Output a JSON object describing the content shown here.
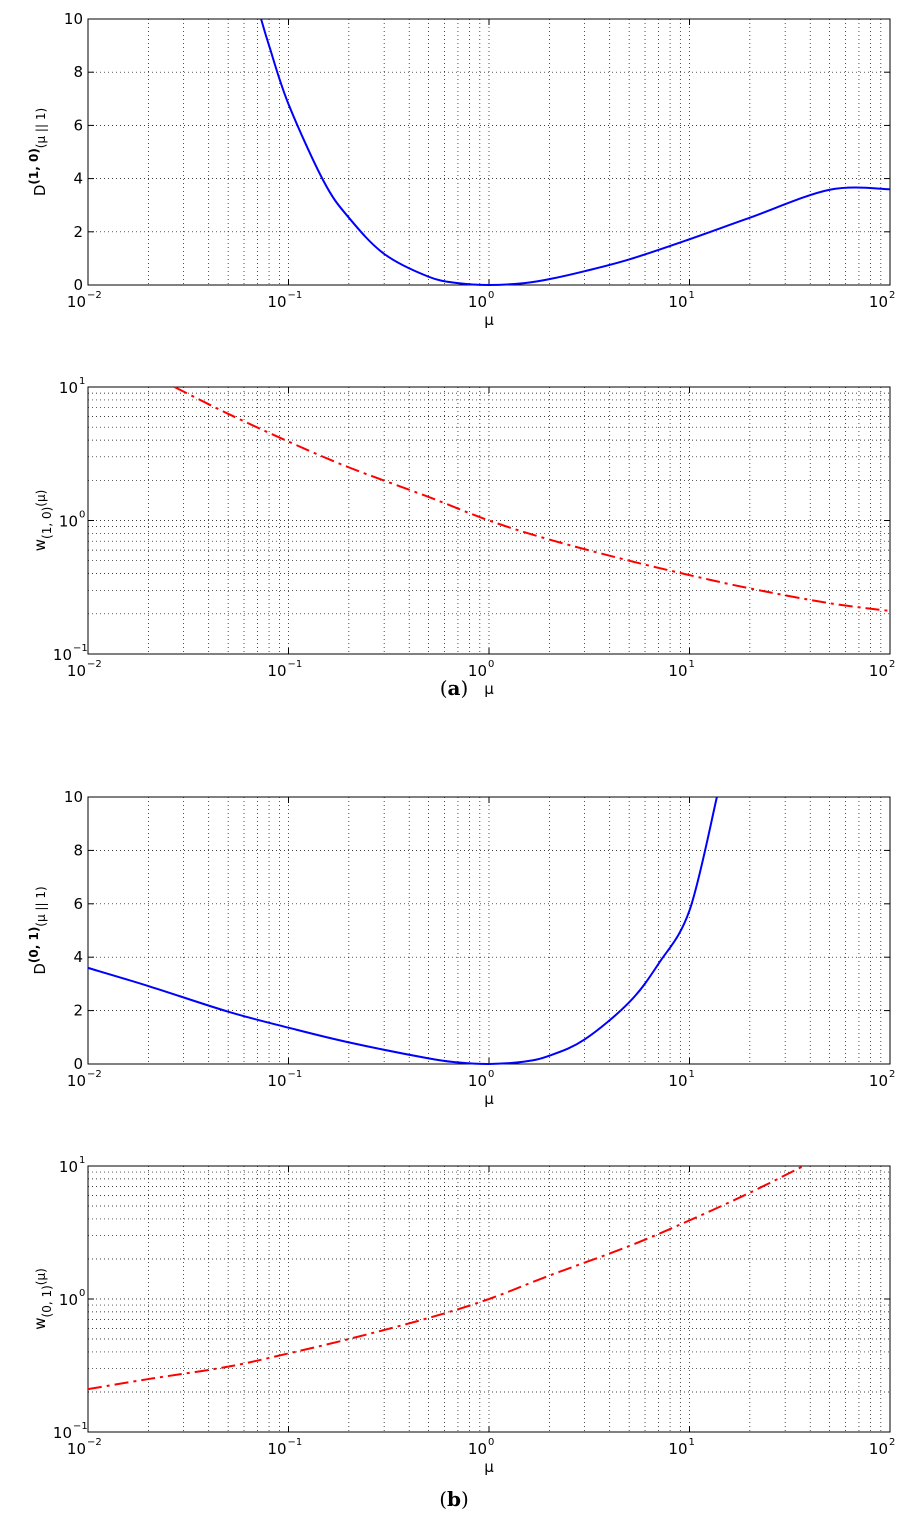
{
  "captions": [
    {
      "open": "(",
      "letter": "a",
      "close": ")"
    },
    {
      "open": "(",
      "letter": "b",
      "close": ")"
    }
  ],
  "chart_data": [
    {
      "type": "line",
      "xscale": "log",
      "yscale": "linear",
      "xlim": [
        0.01,
        100
      ],
      "ylim": [
        0,
        10
      ],
      "xticks": [
        0.01,
        0.1,
        1,
        10,
        100
      ],
      "xtick_labels": [
        {
          "base": "10",
          "exp": "−2"
        },
        {
          "base": "10",
          "exp": "−1"
        },
        {
          "base": "10",
          "exp": "0"
        },
        {
          "base": "10",
          "exp": "1"
        },
        {
          "base": "10",
          "exp": "2"
        }
      ],
      "yticks": [
        0,
        2,
        4,
        6,
        8,
        10
      ],
      "ytick_labels": [
        "0",
        "2",
        "4",
        "6",
        "8",
        "10"
      ],
      "xlabel": "μ",
      "ylabel": {
        "main": "D",
        "super": "(1, 0)",
        "args": "(μ || 1)"
      },
      "grid": true,
      "series": [
        {
          "color": "#0000ff",
          "style": "solid",
          "x": [
            0.073,
            0.08,
            0.1,
            0.15,
            0.2,
            0.3,
            0.5,
            0.7,
            1,
            1.5,
            2,
            3,
            5,
            10,
            20,
            50,
            100
          ],
          "y": [
            10.0,
            9.0,
            6.8,
            3.89,
            2.53,
            1.17,
            0.31,
            0.07,
            0,
            0.07,
            0.22,
            0.52,
            0.96,
            1.72,
            2.53,
            3.58,
            3.6
          ]
        }
      ]
    },
    {
      "type": "line",
      "xscale": "log",
      "yscale": "log",
      "xlim": [
        0.01,
        100
      ],
      "ylim": [
        0.1,
        10
      ],
      "xticks": [
        0.01,
        0.1,
        1,
        10,
        100
      ],
      "xtick_labels": [
        {
          "base": "10",
          "exp": "−2"
        },
        {
          "base": "10",
          "exp": "−1"
        },
        {
          "base": "10",
          "exp": "0"
        },
        {
          "base": "10",
          "exp": "1"
        },
        {
          "base": "10",
          "exp": "2"
        }
      ],
      "yticks": [
        0.1,
        1,
        10
      ],
      "ytick_labels": [
        {
          "base": "10",
          "exp": "−1"
        },
        {
          "base": "10",
          "exp": "0"
        },
        {
          "base": "10",
          "exp": "1"
        }
      ],
      "xlabel": "μ",
      "ylabel": {
        "main": "w",
        "sub": "(1, 0)",
        "args": "(μ)"
      },
      "grid": true,
      "series": [
        {
          "color": "#ff0000",
          "style": "dashed",
          "x": [
            0.027,
            0.05,
            0.1,
            0.2,
            0.5,
            1,
            2,
            5,
            10,
            20,
            50,
            100
          ],
          "y": [
            10.0,
            6.3,
            3.9,
            2.5,
            1.5,
            1.0,
            0.72,
            0.5,
            0.39,
            0.31,
            0.24,
            0.21
          ]
        }
      ]
    },
    {
      "type": "line",
      "xscale": "log",
      "yscale": "linear",
      "xlim": [
        0.01,
        100
      ],
      "ylim": [
        0,
        10
      ],
      "xticks": [
        0.01,
        0.1,
        1,
        10,
        100
      ],
      "xtick_labels": [
        {
          "base": "10",
          "exp": "−2"
        },
        {
          "base": "10",
          "exp": "−1"
        },
        {
          "base": "10",
          "exp": "0"
        },
        {
          "base": "10",
          "exp": "1"
        },
        {
          "base": "10",
          "exp": "2"
        }
      ],
      "yticks": [
        0,
        2,
        4,
        6,
        8,
        10
      ],
      "ytick_labels": [
        "0",
        "2",
        "4",
        "6",
        "8",
        "10"
      ],
      "xlabel": "μ",
      "ylabel": {
        "main": "D",
        "super": "(0, 1)",
        "args": "(μ || 1)"
      },
      "grid": true,
      "series": [
        {
          "color": "#0000ff",
          "style": "solid",
          "x": [
            0.01,
            0.02,
            0.05,
            0.1,
            0.2,
            0.5,
            0.7,
            1,
            1.5,
            2,
            3,
            5,
            7,
            10,
            13.7
          ],
          "y": [
            3.6,
            2.92,
            1.96,
            1.36,
            0.81,
            0.21,
            0.06,
            0,
            0.09,
            0.31,
            0.92,
            2.31,
            3.75,
            5.75,
            10.0
          ]
        }
      ]
    },
    {
      "type": "line",
      "xscale": "log",
      "yscale": "log",
      "xlim": [
        0.01,
        100
      ],
      "ylim": [
        0.1,
        10
      ],
      "xticks": [
        0.01,
        0.1,
        1,
        10,
        100
      ],
      "xtick_labels": [
        {
          "base": "10",
          "exp": "−2"
        },
        {
          "base": "10",
          "exp": "−1"
        },
        {
          "base": "10",
          "exp": "0"
        },
        {
          "base": "10",
          "exp": "1"
        },
        {
          "base": "10",
          "exp": "2"
        }
      ],
      "yticks": [
        0.1,
        1,
        10
      ],
      "ytick_labels": [
        {
          "base": "10",
          "exp": "−1"
        },
        {
          "base": "10",
          "exp": "0"
        },
        {
          "base": "10",
          "exp": "1"
        }
      ],
      "xlabel": "μ",
      "ylabel": {
        "main": "w",
        "sub": "(0, 1)",
        "args": "(μ)"
      },
      "grid": true,
      "series": [
        {
          "color": "#ff0000",
          "style": "dashed",
          "x": [
            0.01,
            0.02,
            0.05,
            0.1,
            0.2,
            0.5,
            1,
            2,
            5,
            10,
            20,
            37
          ],
          "y": [
            0.21,
            0.25,
            0.31,
            0.39,
            0.5,
            0.72,
            1.0,
            1.5,
            2.5,
            3.9,
            6.3,
            10.0
          ]
        }
      ]
    }
  ]
}
